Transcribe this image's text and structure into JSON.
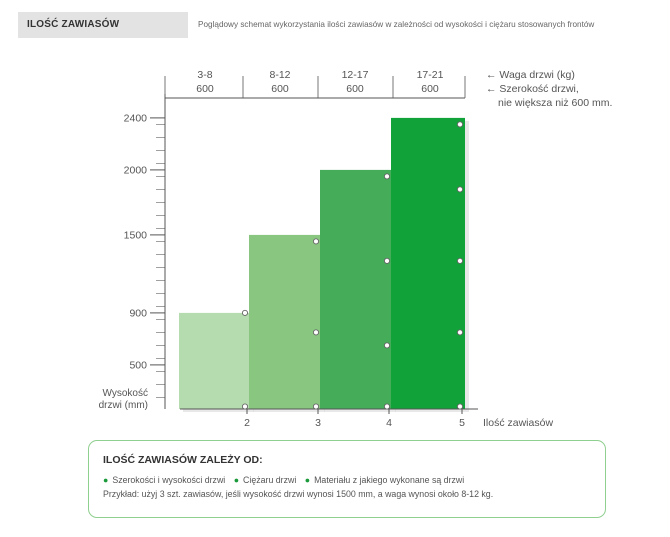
{
  "header": {
    "title": "ILOŚĆ ZAWIASÓW",
    "description": "Poglądowy schemat wykorzystania ilości zawiasów w zależności od wysokości i ciężaru stosowanych frontów"
  },
  "colors": {
    "bar1": "#b5dcae",
    "bar2": "#89c781",
    "bar3": "#45ac5a",
    "bar4": "#11a23a",
    "axis": "#555555",
    "accent": "#1a9a3a"
  },
  "chart_data": {
    "type": "bar",
    "ylabel_lines": [
      "Wysokość",
      "drzwi (mm)"
    ],
    "xlabel": "Ilość zawiasów",
    "y_ticks": [
      500,
      900,
      1500,
      2000,
      2400
    ],
    "ylim": [
      150,
      2450
    ],
    "categories": [
      "2",
      "3",
      "4",
      "5"
    ],
    "values": [
      900,
      1500,
      2000,
      2400
    ],
    "weights": [
      "3-8",
      "8-12",
      "12-17",
      "17-21"
    ],
    "widths": [
      "600",
      "600",
      "600",
      "600"
    ],
    "hinge_heights": [
      [
        180,
        900
      ],
      [
        180,
        750,
        1450
      ],
      [
        180,
        650,
        1300,
        1950
      ],
      [
        180,
        750,
        1300,
        1850,
        2350
      ]
    ],
    "legend_weight": "← Waga drzwi (kg)",
    "legend_width_1": "← Szerokość drzwi,",
    "legend_width_2": "nie większa niż 600 mm."
  },
  "note": {
    "title": "ILOŚĆ ZAWIASÓW ZALEŻY OD:",
    "bullets": [
      "Szerokości i wysokości drzwi",
      "Ciężaru drzwi",
      "Materiału z jakiego wykonane są drzwi"
    ],
    "example": "Przykład: użyj 3 szt. zawiasów, jeśli wysokość drzwi wynosi 1500 mm, a waga wynosi około 8-12 kg."
  }
}
